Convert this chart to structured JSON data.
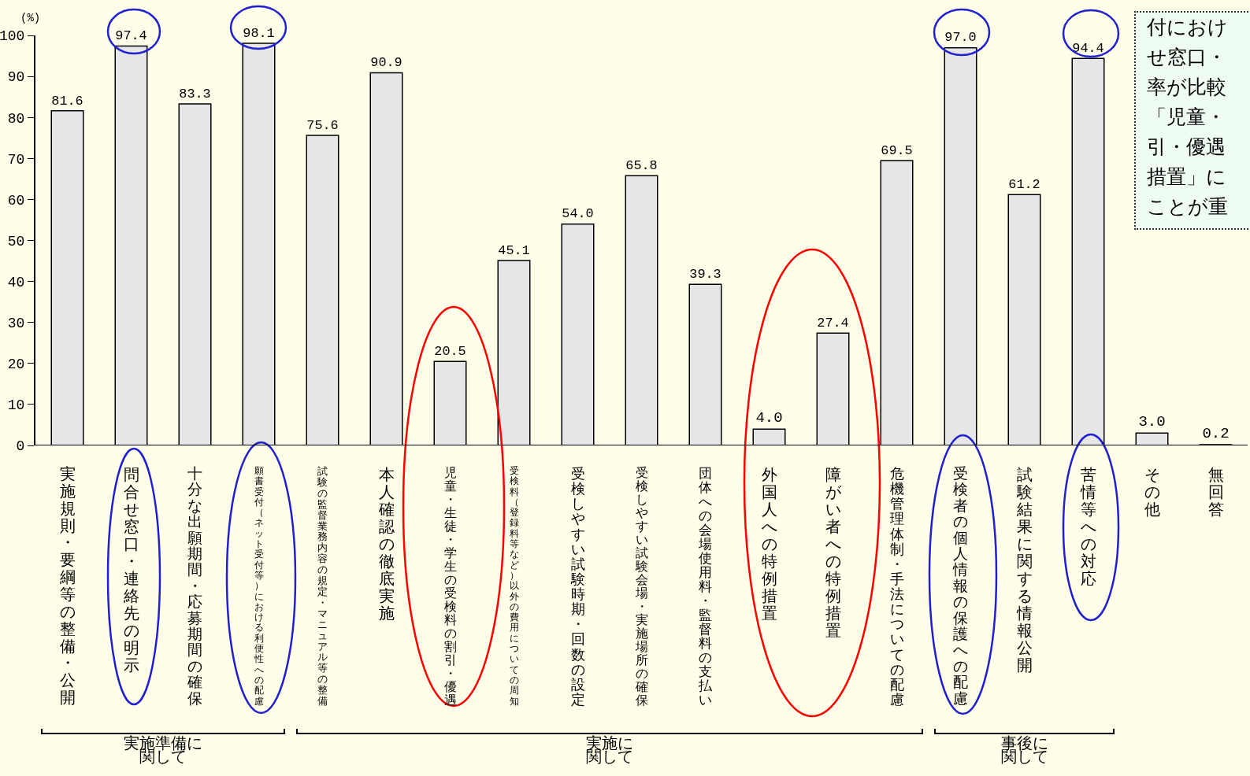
{
  "chart_data": {
    "type": "bar",
    "ylabel": "(%)",
    "categories": [
      "実施規則・要綱等の整備・公開",
      "問合せ窓口・連絡先の明示",
      "十分な出願期間・応募期間の確保",
      "願書受付（ネット受付等）における利便性への配慮",
      "試験の監督業務内容の規定・マニュアル等の整備",
      "本人確認の徹底実施",
      "児童・生徒・学生の受検料の割引・優遇",
      "受検料（登録料等など）以外の費用についての周知",
      "受検しやすい試験時期・回数の設定",
      "受検しやすい試験会場・実施場所の確保",
      "団体への会場使用料・監督料の支払い",
      "外国人への特例措置",
      "障がい者への特例措置",
      "危機管理体制・手法についての配慮",
      "受検者の個人情報の保護への配慮",
      "試験結果に関する情報公開",
      "苦情等への対応",
      "その他",
      "無回答"
    ],
    "values": [
      81.6,
      97.4,
      83.3,
      98.1,
      75.6,
      90.9,
      20.5,
      45.1,
      54.0,
      65.8,
      39.3,
      4.0,
      27.4,
      69.5,
      97.0,
      61.2,
      94.4,
      3.0,
      0.2
    ],
    "value_labels": [
      "81.6",
      "97.4",
      "83.3",
      "98.1",
      "75.6",
      "90.9",
      "20.5",
      "45.1",
      "54.0",
      "65.8",
      "39.3",
      "4.0",
      "27.4",
      "69.5",
      "97.0",
      "61.2",
      "94.4",
      "3.0",
      "0.2"
    ],
    "color": "#e6e6e6",
    "ylim": [
      0,
      100
    ],
    "yticks": [
      0,
      10,
      20,
      30,
      40,
      50,
      60,
      70,
      80,
      90,
      100
    ],
    "grid": false,
    "annotations": [
      "実施準備に関して",
      "実施に関して",
      "事後に関して",
      "付におけせ窓口・率が比較「児童・引・優遇措置」にことが重"
    ]
  }
}
